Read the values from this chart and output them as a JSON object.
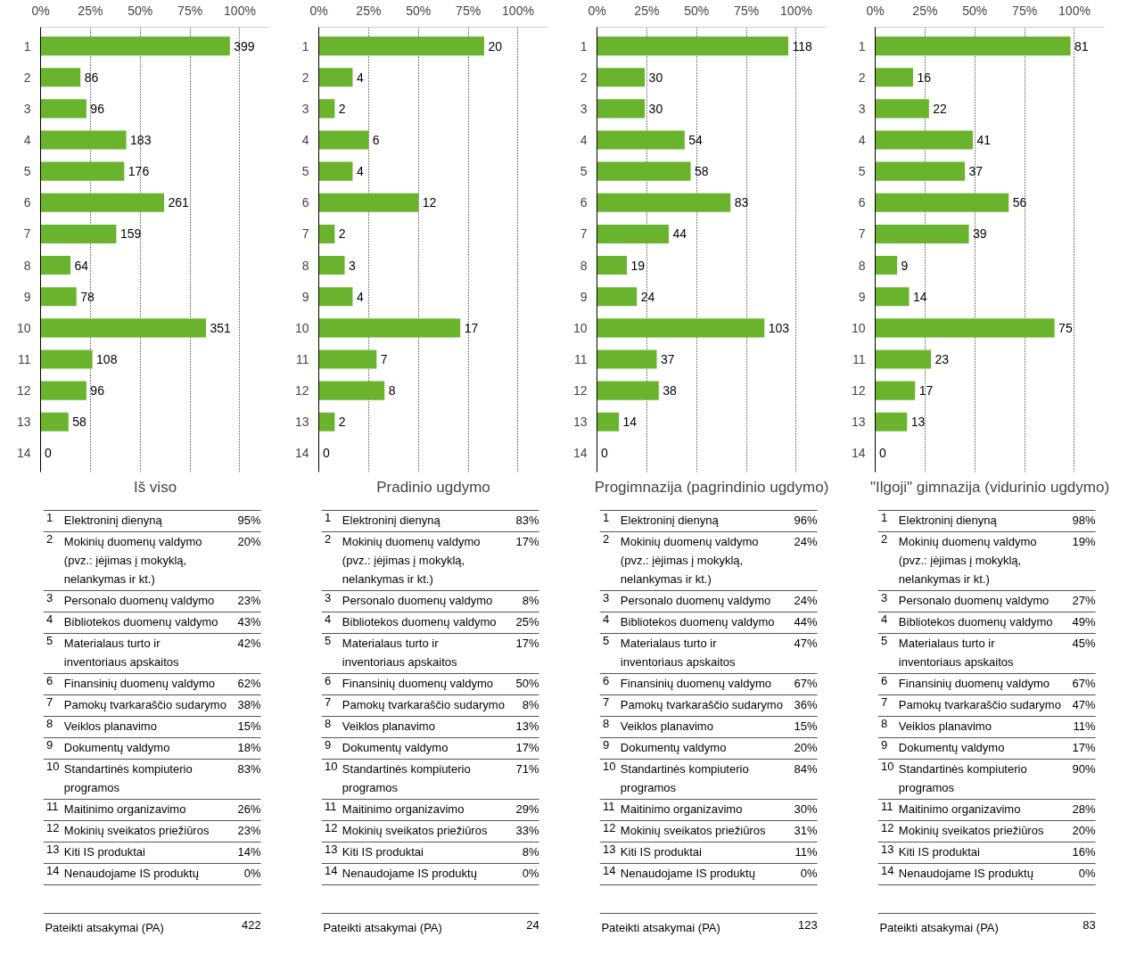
{
  "chart_data": [
    {
      "type": "bar",
      "orientation": "horizontal",
      "title": "Iš viso",
      "color": "#6ab42d",
      "grid": "x",
      "xlim": [
        0,
        115
      ],
      "xticks": [
        {
          "value": 0,
          "label": "0%"
        },
        {
          "value": 25,
          "label": "25%"
        },
        {
          "value": 50,
          "label": "50%"
        },
        {
          "value": 75,
          "label": "75%"
        },
        {
          "value": 100,
          "label": "100%"
        }
      ],
      "categories": [
        "1",
        "2",
        "3",
        "4",
        "5",
        "6",
        "7",
        "8",
        "9",
        "10",
        "11",
        "12",
        "13",
        "14"
      ],
      "values": [
        95,
        20,
        23,
        43,
        42,
        62,
        38,
        15,
        18,
        83,
        26,
        23,
        14,
        0
      ],
      "annotations": [
        {
          "text": "399",
          "x": 95,
          "y": "1"
        },
        {
          "text": "86",
          "x": 20,
          "y": "2"
        },
        {
          "text": "96",
          "x": 23,
          "y": "3"
        },
        {
          "text": "183",
          "x": 43,
          "y": "4"
        },
        {
          "text": "176",
          "x": 42,
          "y": "5"
        },
        {
          "text": "261",
          "x": 62,
          "y": "6"
        },
        {
          "text": "159",
          "x": 38,
          "y": "7"
        },
        {
          "text": "64",
          "x": 15,
          "y": "8"
        },
        {
          "text": "78",
          "x": 18,
          "y": "9"
        },
        {
          "text": "351",
          "x": 83,
          "y": "10"
        },
        {
          "text": "108",
          "x": 26,
          "y": "11"
        },
        {
          "text": "96",
          "x": 23,
          "y": "12"
        },
        {
          "text": "58",
          "x": 14,
          "y": "13"
        },
        {
          "text": "0",
          "x": 0,
          "y": "14"
        },
        "Elektroninį dienyną",
        "95%",
        "Mokinių duomenų valdymo (pvz.: įėjimas į mokyklą, nelankymas ir kt.)",
        "20%",
        "Personalo duomenų valdymo",
        "23%",
        "Bibliotekos duomenų valdymo",
        "43%",
        "Materialaus turto ir inventoriaus apskaitos",
        "42%",
        "Finansinių duomenų valdymo",
        "62%",
        "Pamokų tvarkaraščio sudarymo",
        "38%",
        "Veiklos planavimo",
        "15%",
        "Dokumentų valdymo",
        "18%",
        "Standartinės kompiuterio programos",
        "83%",
        "Maitinimo organizavimo",
        "26%",
        "Mokinių sveikatos priežiūros",
        "23%",
        "Kiti IS produktai",
        "14%",
        "Nenaudojame IS produktų",
        "0%",
        "Pateikti atsakymai (PA)",
        "422"
      ]
    },
    {
      "type": "bar",
      "orientation": "horizontal",
      "title": "Pradinio ugdymo",
      "color": "#6ab42d",
      "grid": "x",
      "xlim": [
        0,
        115
      ],
      "xticks": [
        {
          "value": 0,
          "label": "0%"
        },
        {
          "value": 25,
          "label": "25%"
        },
        {
          "value": 50,
          "label": "50%"
        },
        {
          "value": 75,
          "label": "75%"
        },
        {
          "value": 100,
          "label": "100%"
        }
      ],
      "categories": [
        "1",
        "2",
        "3",
        "4",
        "5",
        "6",
        "7",
        "8",
        "9",
        "10",
        "11",
        "12",
        "13",
        "14"
      ],
      "values": [
        83,
        17,
        8,
        25,
        17,
        50,
        8,
        13,
        17,
        71,
        29,
        33,
        8,
        0
      ],
      "annotations": [
        {
          "text": "20",
          "x": 83,
          "y": "1"
        },
        {
          "text": "4",
          "x": 17,
          "y": "2"
        },
        {
          "text": "2",
          "x": 8,
          "y": "3"
        },
        {
          "text": "6",
          "x": 25,
          "y": "4"
        },
        {
          "text": "4",
          "x": 17,
          "y": "5"
        },
        {
          "text": "12",
          "x": 50,
          "y": "6"
        },
        {
          "text": "2",
          "x": 8,
          "y": "7"
        },
        {
          "text": "3",
          "x": 13,
          "y": "8"
        },
        {
          "text": "4",
          "x": 17,
          "y": "9"
        },
        {
          "text": "17",
          "x": 71,
          "y": "10"
        },
        {
          "text": "7",
          "x": 29,
          "y": "11"
        },
        {
          "text": "8",
          "x": 33,
          "y": "12"
        },
        {
          "text": "2",
          "x": 8,
          "y": "13"
        },
        {
          "text": "0",
          "x": 0,
          "y": "14"
        },
        "Elektroninį dienyną",
        "83%",
        "Mokinių duomenų valdymo (pvz.: įėjimas į mokyklą, nelankymas ir kt.)",
        "17%",
        "Personalo duomenų valdymo",
        "8%",
        "Bibliotekos duomenų valdymo",
        "25%",
        "Materialaus turto ir inventoriaus apskaitos",
        "17%",
        "Finansinių duomenų valdymo",
        "50%",
        "Pamokų tvarkaraščio sudarymo",
        "8%",
        "Veiklos planavimo",
        "13%",
        "Dokumentų valdymo",
        "17%",
        "Standartinės kompiuterio programos",
        "71%",
        "Maitinimo organizavimo",
        "29%",
        "Mokinių sveikatos priežiūros",
        "33%",
        "Kiti IS produktai",
        "8%",
        "Nenaudojame IS produktų",
        "0%",
        "Pateikti atsakymai (PA)",
        "24"
      ]
    },
    {
      "type": "bar",
      "orientation": "horizontal",
      "title": "Progimnazija (pagrindinio ugdymo)",
      "color": "#6ab42d",
      "grid": "x",
      "xlim": [
        0,
        115
      ],
      "xticks": [
        {
          "value": 0,
          "label": "0%"
        },
        {
          "value": 25,
          "label": "25%"
        },
        {
          "value": 50,
          "label": "50%"
        },
        {
          "value": 75,
          "label": "75%"
        },
        {
          "value": 100,
          "label": "100%"
        }
      ],
      "categories": [
        "1",
        "2",
        "3",
        "4",
        "5",
        "6",
        "7",
        "8",
        "9",
        "10",
        "11",
        "12",
        "13",
        "14"
      ],
      "values": [
        96,
        24,
        24,
        44,
        47,
        67,
        36,
        15,
        20,
        84,
        30,
        31,
        11,
        0
      ],
      "annotations": [
        {
          "text": "118",
          "x": 96,
          "y": "1"
        },
        {
          "text": "30",
          "x": 24,
          "y": "2"
        },
        {
          "text": "30",
          "x": 24,
          "y": "3"
        },
        {
          "text": "54",
          "x": 44,
          "y": "4"
        },
        {
          "text": "58",
          "x": 47,
          "y": "5"
        },
        {
          "text": "83",
          "x": 67,
          "y": "6"
        },
        {
          "text": "44",
          "x": 36,
          "y": "7"
        },
        {
          "text": "19",
          "x": 15,
          "y": "8"
        },
        {
          "text": "24",
          "x": 20,
          "y": "9"
        },
        {
          "text": "103",
          "x": 84,
          "y": "10"
        },
        {
          "text": "37",
          "x": 30,
          "y": "11"
        },
        {
          "text": "38",
          "x": 31,
          "y": "12"
        },
        {
          "text": "14",
          "x": 11,
          "y": "13"
        },
        {
          "text": "0",
          "x": 0,
          "y": "14"
        },
        "Elektroninį dienyną",
        "96%",
        "Mokinių duomenų valdymo (pvz.: įėjimas į mokyklą, nelankymas ir kt.)",
        "24%",
        "Personalo duomenų valdymo",
        "24%",
        "Bibliotekos duomenų valdymo",
        "44%",
        "Materialaus turto ir inventoriaus apskaitos",
        "47%",
        "Finansinių duomenų valdymo",
        "67%",
        "Pamokų tvarkaraščio sudarymo",
        "36%",
        "Veiklos planavimo",
        "15%",
        "Dokumentų valdymo",
        "20%",
        "Standartinės kompiuterio programos",
        "84%",
        "Maitinimo organizavimo",
        "30%",
        "Mokinių sveikatos priežiūros",
        "31%",
        "Kiti IS produktai",
        "11%",
        "Nenaudojame IS produktų",
        "0%",
        "Pateikti atsakymai (PA)",
        "123"
      ]
    },
    {
      "type": "bar",
      "orientation": "horizontal",
      "title": "\"Ilgoji\" gimnazija (vidurinio ugdymo)",
      "color": "#6ab42d",
      "grid": "x",
      "xlim": [
        0,
        115
      ],
      "xticks": [
        {
          "value": 0,
          "label": "0%"
        },
        {
          "value": 25,
          "label": "25%"
        },
        {
          "value": 50,
          "label": "50%"
        },
        {
          "value": 75,
          "label": "75%"
        },
        {
          "value": 100,
          "label": "100%"
        }
      ],
      "categories": [
        "1",
        "2",
        "3",
        "4",
        "5",
        "6",
        "7",
        "8",
        "9",
        "10",
        "11",
        "12",
        "13",
        "14"
      ],
      "values": [
        98,
        19,
        27,
        49,
        45,
        67,
        47,
        11,
        17,
        90,
        28,
        20,
        16,
        0
      ],
      "annotations": [
        {
          "text": "81",
          "x": 98,
          "y": "1"
        },
        {
          "text": "16",
          "x": 19,
          "y": "2"
        },
        {
          "text": "22",
          "x": 27,
          "y": "3"
        },
        {
          "text": "41",
          "x": 49,
          "y": "4"
        },
        {
          "text": "37",
          "x": 45,
          "y": "5"
        },
        {
          "text": "56",
          "x": 67,
          "y": "6"
        },
        {
          "text": "39",
          "x": 47,
          "y": "7"
        },
        {
          "text": "9",
          "x": 11,
          "y": "8"
        },
        {
          "text": "14",
          "x": 17,
          "y": "9"
        },
        {
          "text": "75",
          "x": 90,
          "y": "10"
        },
        {
          "text": "23",
          "x": 28,
          "y": "11"
        },
        {
          "text": "17",
          "x": 20,
          "y": "12"
        },
        {
          "text": "13",
          "x": 16,
          "y": "13"
        },
        {
          "text": "0",
          "x": 0,
          "y": "14"
        },
        "Elektroninį dienyną",
        "98%",
        "Mokinių duomenų valdymo (pvz.: įėjimas į mokyklą, nelankymas ir kt.)",
        "19%",
        "Personalo duomenų valdymo",
        "27%",
        "Bibliotekos duomenų valdymo",
        "49%",
        "Materialaus turto ir inventoriaus apskaitos",
        "45%",
        "Finansinių duomenų valdymo",
        "67%",
        "Pamokų tvarkaraščio sudarymo",
        "47%",
        "Veiklos planavimo",
        "11%",
        "Dokumentų valdymo",
        "17%",
        "Standartinės kompiuterio programos",
        "90%",
        "Maitinimo organizavimo",
        "28%",
        "Mokinių sveikatos priežiūros",
        "20%",
        "Kiti IS produktai",
        "16%",
        "Nenaudojame IS produktų",
        "0%",
        "Pateikti atsakymai (PA)",
        "83"
      ]
    }
  ]
}
